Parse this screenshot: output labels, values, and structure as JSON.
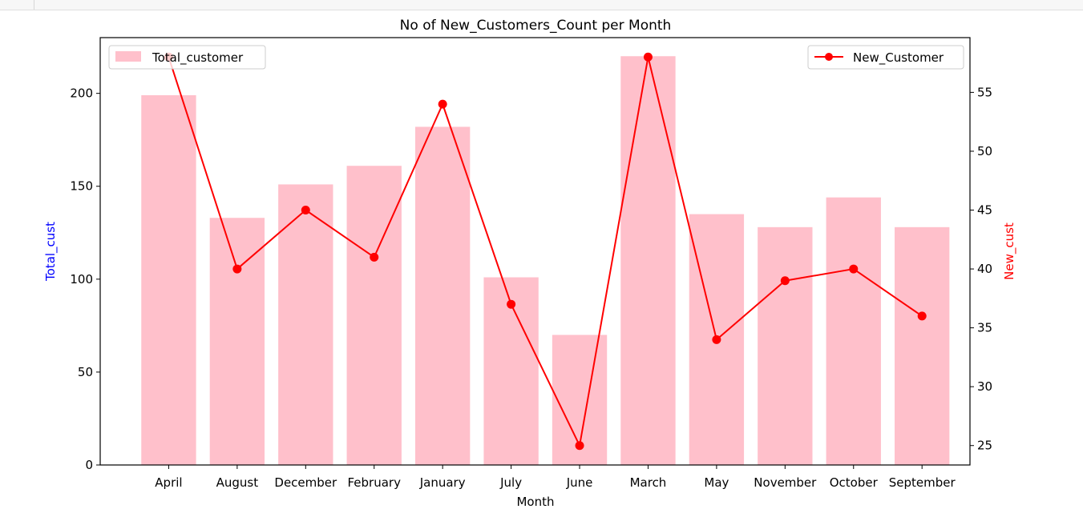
{
  "chart_data": {
    "type": "bar",
    "title": "No of New_Customers_Count per Month",
    "xlabel": "Month",
    "ylabel_left": "Total_cust",
    "ylabel_right": "New_cust",
    "categories": [
      "April",
      "August",
      "December",
      "February",
      "January",
      "July",
      "June",
      "March",
      "May",
      "November",
      "October",
      "September"
    ],
    "series": [
      {
        "name": "Total_customer",
        "type": "bar",
        "axis": "left",
        "color": "#ffc0cb",
        "values": [
          199,
          133,
          151,
          161,
          182,
          101,
          70,
          220,
          135,
          128,
          144,
          128
        ]
      },
      {
        "name": "New_Customer",
        "type": "line",
        "axis": "right",
        "color": "#ff0000",
        "marker": "circle",
        "values": [
          58,
          40,
          45,
          41,
          54,
          37,
          25,
          58,
          34,
          39,
          40,
          36
        ]
      }
    ],
    "ylim_left": [
      0,
      230
    ],
    "ylim_right": [
      23.35,
      59.65
    ],
    "yticks_left": [
      0,
      50,
      100,
      150,
      200
    ],
    "yticks_right": [
      25,
      30,
      35,
      40,
      45,
      50,
      55
    ],
    "ylabel_left_color": "#0000ff",
    "ylabel_right_color": "#ff0000",
    "legend_left": "upper-left",
    "legend_right": "upper-right",
    "grid": false
  }
}
